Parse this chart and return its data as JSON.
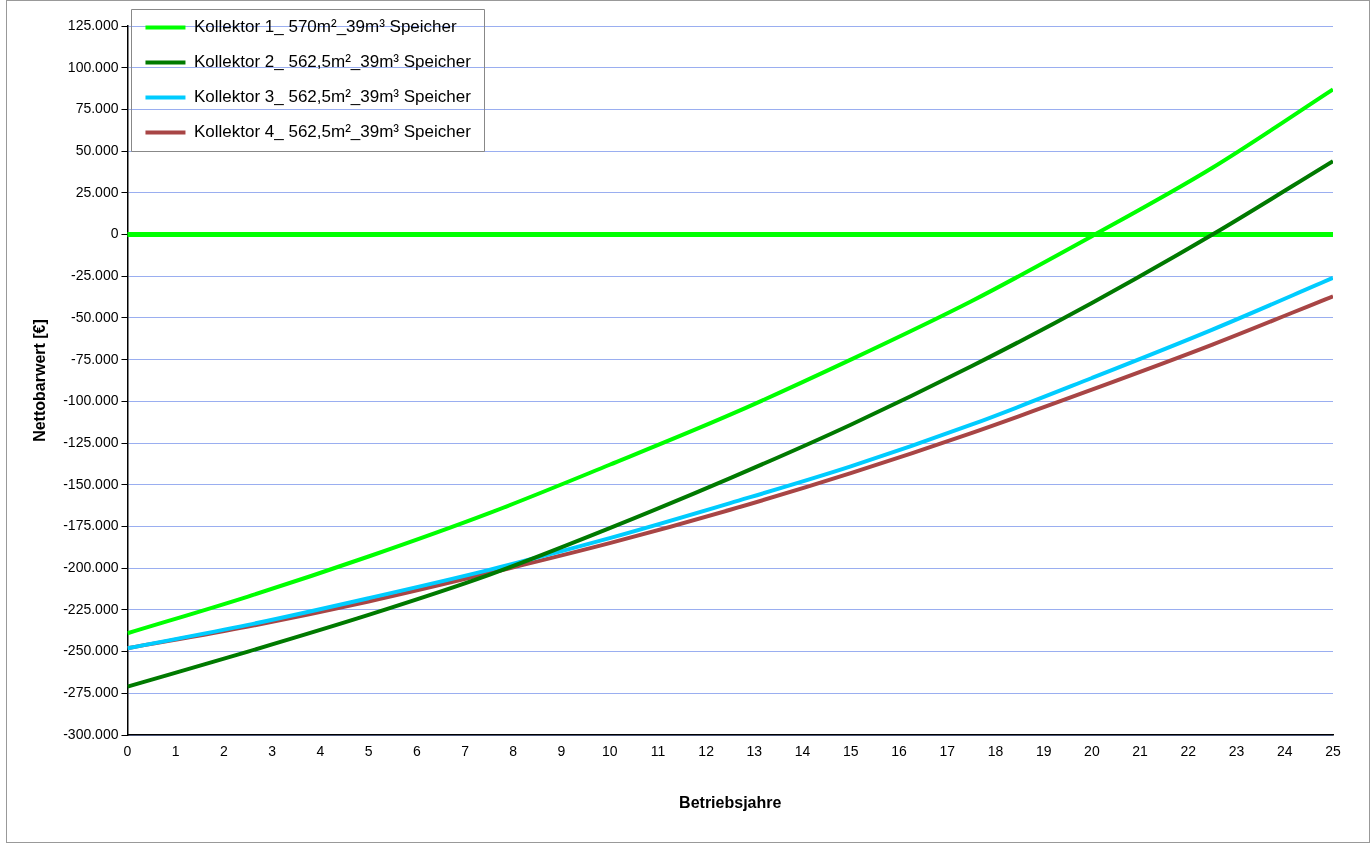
{
  "chart_data": {
    "type": "line",
    "xlabel": "Betriebsjahre",
    "ylabel": "Nettobarwert [€]",
    "x": [
      0,
      2.5,
      5,
      7.5,
      10,
      12.5,
      15,
      17.5,
      20,
      22.5,
      25
    ],
    "series": [
      {
        "name": "Kollektor 1_ 570m²_39m³ Speicher",
        "color": "#00ff00",
        "values": [
          -239000,
          -217000,
          -193000,
          -167000,
          -138000,
          -108000,
          -75000,
          -40000,
          -1000,
          40000,
          87000
        ]
      },
      {
        "name": "Kollektor 2_ 562,5m²_39m³ Speicher",
        "color": "#007a00",
        "values": [
          -271000,
          -250000,
          -228000,
          -204000,
          -176000,
          -146000,
          -114000,
          -79000,
          -41000,
          0,
          44000
        ]
      },
      {
        "name": "Kollektor 3_ 562,5m²_39m³ Speicher",
        "color": "#00ccff",
        "values": [
          -248000,
          -234000,
          -218000,
          -201000,
          -182000,
          -161000,
          -139000,
          -114000,
          -86000,
          -57000,
          -26000
        ]
      },
      {
        "name": "Kollektor 4_ 562,5m²_39m³ Speicher",
        "color": "#a84545",
        "values": [
          -248000,
          -235000,
          -220000,
          -203000,
          -185000,
          -165000,
          -143000,
          -119000,
          -93000,
          -66000,
          -37000
        ]
      }
    ],
    "xlim": [
      0,
      25
    ],
    "xticks": [
      0,
      1,
      2,
      3,
      4,
      5,
      6,
      7,
      8,
      9,
      10,
      11,
      12,
      13,
      14,
      15,
      16,
      17,
      18,
      19,
      20,
      21,
      22,
      23,
      24,
      25
    ],
    "ylim": [
      -300000,
      125000
    ],
    "yticks": [
      {
        "value": -300000,
        "label": "-300.000"
      },
      {
        "value": -275000,
        "label": "-275.000"
      },
      {
        "value": -250000,
        "label": "-250.000"
      },
      {
        "value": -225000,
        "label": "-225.000"
      },
      {
        "value": -200000,
        "label": "-200.000"
      },
      {
        "value": -175000,
        "label": "-175.000"
      },
      {
        "value": -150000,
        "label": "-150.000"
      },
      {
        "value": -125000,
        "label": "-125.000"
      },
      {
        "value": -100000,
        "label": "-100.000"
      },
      {
        "value": -75000,
        "label": "-75.000"
      },
      {
        "value": -50000,
        "label": "-50.000"
      },
      {
        "value": -25000,
        "label": "-25.000"
      },
      0,
      {
        "value": 25000,
        "label": "25.000"
      },
      {
        "value": 50000,
        "label": "50.000"
      },
      {
        "value": 75000,
        "label": "75.000"
      },
      {
        "value": 100000,
        "label": "100.000"
      },
      {
        "value": 125000,
        "label": "125.000"
      }
    ],
    "ref_lines": [
      {
        "axis": "y",
        "value": 0,
        "color": "#00ff00"
      }
    ],
    "grid": "y",
    "legend": "top left",
    "marker": "none",
    "line_style": "solid"
  }
}
